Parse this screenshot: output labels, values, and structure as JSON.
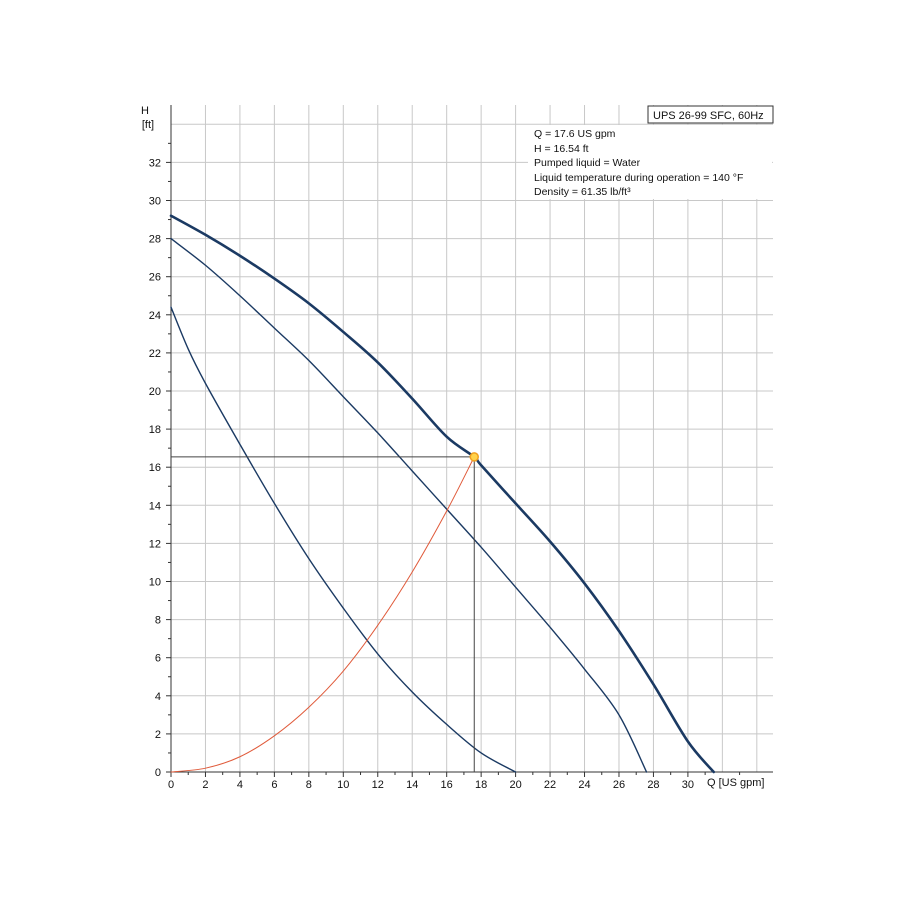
{
  "chart_data": {
    "type": "line",
    "title": "UPS 26-99 SFC, 60Hz",
    "xlabel": "Q [US gpm]",
    "ylabel": "H",
    "yunit": "[ft]",
    "xlim": [
      0,
      35
    ],
    "ylim": [
      0,
      35
    ],
    "xticks": [
      0,
      2,
      4,
      6,
      8,
      10,
      12,
      14,
      16,
      18,
      20,
      22,
      24,
      26,
      28,
      30
    ],
    "yticks": [
      0,
      2,
      4,
      6,
      8,
      10,
      12,
      14,
      16,
      18,
      20,
      22,
      24,
      26,
      28,
      30,
      32
    ],
    "grid": true,
    "info_lines": [
      "Q = 17.6 US gpm",
      "H = 16.54 ft",
      "Pumped liquid = Water",
      "Liquid temperature during operation = 140 °F",
      "Density = 61.35 lb/ft³"
    ],
    "duty_point": {
      "x": 17.6,
      "y": 16.54
    },
    "colors": {
      "pump": "#1b3a63",
      "system": "#e05a3a",
      "duty": "#f0a020",
      "grid": "#c8c8c8"
    },
    "series": [
      {
        "kind": "pump-curve-high",
        "values": [
          [
            0,
            29.2
          ],
          [
            2,
            28.2
          ],
          [
            4,
            27.1
          ],
          [
            6,
            25.9
          ],
          [
            8,
            24.6
          ],
          [
            10,
            23.1
          ],
          [
            12,
            21.5
          ],
          [
            14,
            19.6
          ],
          [
            16,
            17.6
          ],
          [
            17.6,
            16.54
          ],
          [
            18,
            16.1
          ],
          [
            20,
            14.1
          ],
          [
            22,
            12.1
          ],
          [
            24,
            9.9
          ],
          [
            26,
            7.4
          ],
          [
            28,
            4.6
          ],
          [
            30,
            1.6
          ],
          [
            31.5,
            0
          ]
        ]
      },
      {
        "kind": "pump-curve-medium",
        "values": [
          [
            0,
            28.0
          ],
          [
            2,
            26.6
          ],
          [
            4,
            25.0
          ],
          [
            6,
            23.3
          ],
          [
            8,
            21.6
          ],
          [
            10,
            19.7
          ],
          [
            12,
            17.8
          ],
          [
            14,
            15.8
          ],
          [
            16,
            13.8
          ],
          [
            18,
            11.8
          ],
          [
            20,
            9.7
          ],
          [
            22,
            7.6
          ],
          [
            24,
            5.4
          ],
          [
            26,
            3.0
          ],
          [
            27.6,
            0
          ]
        ]
      },
      {
        "kind": "pump-curve-low",
        "values": [
          [
            0,
            24.4
          ],
          [
            1,
            22.2
          ],
          [
            2,
            20.4
          ],
          [
            4,
            17.2
          ],
          [
            6,
            14.1
          ],
          [
            8,
            11.2
          ],
          [
            10,
            8.6
          ],
          [
            12,
            6.2
          ],
          [
            14,
            4.2
          ],
          [
            16,
            2.5
          ],
          [
            18,
            1.0
          ],
          [
            20,
            0
          ]
        ]
      },
      {
        "kind": "system-curve",
        "values": [
          [
            0,
            0
          ],
          [
            2,
            0.2
          ],
          [
            4,
            0.8
          ],
          [
            6,
            1.9
          ],
          [
            8,
            3.4
          ],
          [
            10,
            5.3
          ],
          [
            12,
            7.7
          ],
          [
            14,
            10.5
          ],
          [
            16,
            13.7
          ],
          [
            17.6,
            16.54
          ]
        ]
      }
    ]
  }
}
